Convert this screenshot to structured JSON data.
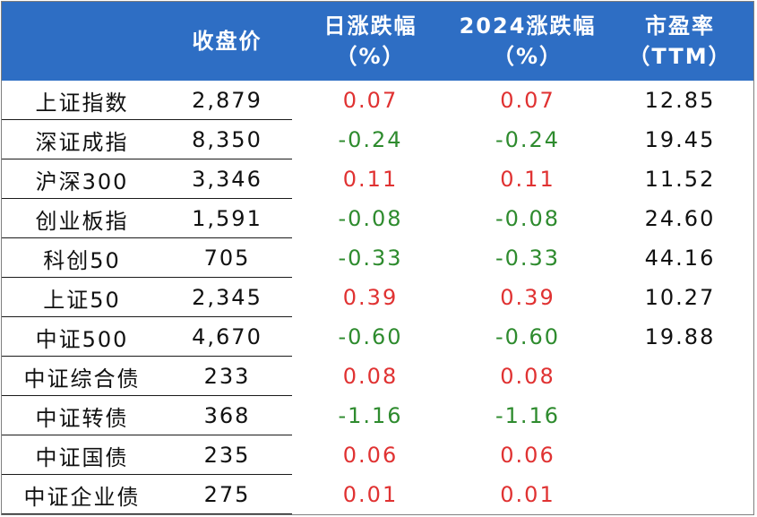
{
  "table": {
    "headers": [
      {
        "lines": [
          "",
          ""
        ]
      },
      {
        "lines": [
          "收盘价"
        ]
      },
      {
        "lines": [
          "日涨跌幅",
          "（%）"
        ]
      },
      {
        "lines": [
          "2024涨跌幅",
          "（%）"
        ]
      },
      {
        "lines": [
          "市盈率",
          "（TTM）"
        ]
      }
    ],
    "rows": [
      {
        "name": "上证指数",
        "close": "2,879",
        "day": "0.07",
        "ytd": "0.07",
        "pe": "12.85",
        "dir": "pos"
      },
      {
        "name": "深证成指",
        "close": "8,350",
        "day": "-0.24",
        "ytd": "-0.24",
        "pe": "19.45",
        "dir": "neg"
      },
      {
        "name": "沪深300",
        "close": "3,346",
        "day": "0.11",
        "ytd": "0.11",
        "pe": "11.52",
        "dir": "pos"
      },
      {
        "name": "创业板指",
        "close": "1,591",
        "day": "-0.08",
        "ytd": "-0.08",
        "pe": "24.60",
        "dir": "neg"
      },
      {
        "name": "科创50",
        "close": "705",
        "day": "-0.33",
        "ytd": "-0.33",
        "pe": "44.16",
        "dir": "neg"
      },
      {
        "name": "上证50",
        "close": "2,345",
        "day": "0.39",
        "ytd": "0.39",
        "pe": "10.27",
        "dir": "pos"
      },
      {
        "name": "中证500",
        "close": "4,670",
        "day": "-0.60",
        "ytd": "-0.60",
        "pe": "19.88",
        "dir": "neg"
      },
      {
        "name": "中证综合债",
        "close": "233",
        "day": "0.08",
        "ytd": "0.08",
        "pe": "",
        "dir": "pos"
      },
      {
        "name": "中证转债",
        "close": "368",
        "day": "-1.16",
        "ytd": "-1.16",
        "pe": "",
        "dir": "neg"
      },
      {
        "name": "中证国债",
        "close": "235",
        "day": "0.06",
        "ytd": "0.06",
        "pe": "",
        "dir": "pos"
      },
      {
        "name": "中证企业债",
        "close": "275",
        "day": "0.01",
        "ytd": "0.01",
        "pe": "",
        "dir": "pos"
      }
    ]
  },
  "colors": {
    "header_bg": "#2e6ec4",
    "positive": "#e03232",
    "negative": "#2e8b2e",
    "text": "#111111"
  }
}
